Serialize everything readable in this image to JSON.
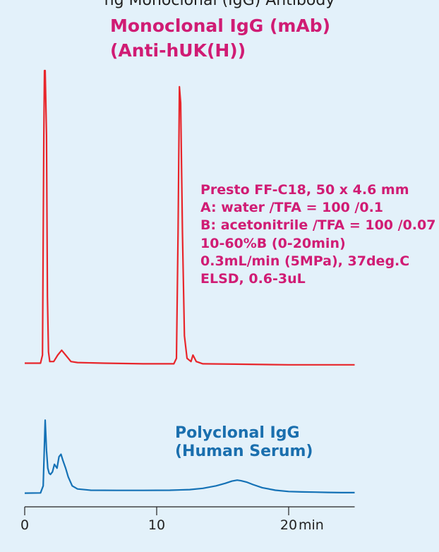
{
  "header": {
    "title": "ng Monoclonal (IgG) Antibody"
  },
  "colors": {
    "background": "#e3f1fa",
    "monoclonal": "#e8262b",
    "polyclonal": "#1572b6",
    "label_magenta": "#d01c74",
    "label_blue": "#1a6fae"
  },
  "chart_data": {
    "type": "line",
    "title": "ng Monoclonal (IgG) Antibody",
    "xlabel": "min",
    "ylabel": "",
    "xlim": [
      0,
      25
    ],
    "ylim": [
      0,
      1
    ],
    "xticks": [
      {
        "value": 0,
        "label": "0"
      },
      {
        "value": 10,
        "label": "10"
      },
      {
        "value": 20,
        "label": "20"
      }
    ],
    "x_unit": "min",
    "grid": false,
    "legend": "none",
    "annotations": {
      "monoclonal": [
        "Monoclonal IgG (mAb)",
        "(Anti-hUK(H))"
      ],
      "polyclonal": [
        "Polyclonal IgG",
        "(Human Serum)"
      ],
      "conditions": [
        "Presto FF-C18, 50 x 4.6 mm",
        "A: water /TFA = 100 /0.1",
        "B: acetonitrile /TFA = 100 /0.07",
        "10-60%B (0-20min)",
        "0.3mL/min (5MPa), 37deg.C",
        "ELSD, 0.6-3uL"
      ]
    },
    "series": [
      {
        "name": "Monoclonal IgG (mAb)",
        "x": [
          0,
          1.2,
          1.35,
          1.45,
          1.5,
          1.55,
          1.65,
          1.72,
          1.8,
          1.9,
          2.0,
          2.2,
          2.5,
          2.8,
          3.1,
          3.5,
          4.0,
          6,
          9,
          11.3,
          11.5,
          11.62,
          11.72,
          11.82,
          11.95,
          12.1,
          12.3,
          12.6,
          12.75,
          13.0,
          13.5,
          16,
          20,
          25
        ],
        "y": [
          0.095,
          0.095,
          0.12,
          0.8,
          1.0,
          1.0,
          0.8,
          0.3,
          0.13,
          0.1,
          0.1,
          0.1,
          0.12,
          0.135,
          0.12,
          0.1,
          0.097,
          0.095,
          0.093,
          0.093,
          0.11,
          0.5,
          0.95,
          0.9,
          0.5,
          0.18,
          0.11,
          0.1,
          0.12,
          0.1,
          0.093,
          0.092,
          0.09,
          0.09
        ],
        "color": "#e8262b"
      },
      {
        "name": "Polyclonal IgG (Human Serum)",
        "x": [
          0,
          1.2,
          1.4,
          1.55,
          1.65,
          1.75,
          1.85,
          1.95,
          2.1,
          2.25,
          2.45,
          2.6,
          2.75,
          2.9,
          3.1,
          3.3,
          3.6,
          4.0,
          5,
          7,
          9,
          11,
          12.5,
          13.5,
          14.5,
          15.2,
          15.7,
          16.1,
          16.4,
          16.8,
          17.3,
          18,
          19,
          20,
          21,
          22,
          23,
          24,
          25
        ],
        "y": [
          0.002,
          0.004,
          0.06,
          0.58,
          0.34,
          0.2,
          0.16,
          0.15,
          0.17,
          0.23,
          0.2,
          0.29,
          0.31,
          0.26,
          0.2,
          0.13,
          0.06,
          0.035,
          0.025,
          0.024,
          0.024,
          0.025,
          0.03,
          0.04,
          0.06,
          0.08,
          0.097,
          0.105,
          0.1,
          0.09,
          0.07,
          0.045,
          0.025,
          0.015,
          0.012,
          0.01,
          0.008,
          0.006,
          0.006
        ],
        "color": "#1572b6"
      }
    ]
  }
}
